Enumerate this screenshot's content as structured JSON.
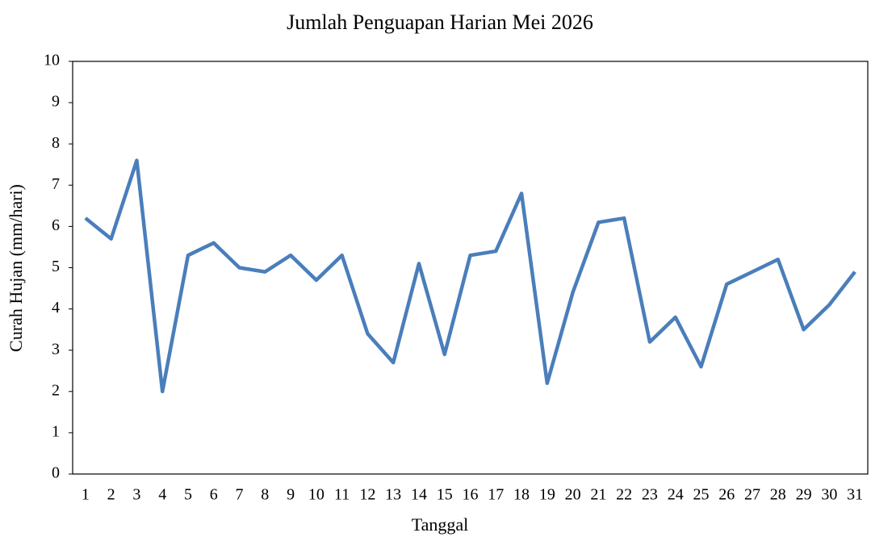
{
  "chart_data": {
    "type": "line",
    "title": "Jumlah Penguapan Harian Mei 2026",
    "x_label": "Tanggal",
    "y_label": "Curah Hujan (mm/hari)",
    "categories": [
      "1",
      "2",
      "3",
      "4",
      "5",
      "6",
      "7",
      "8",
      "9",
      "10",
      "11",
      "12",
      "13",
      "14",
      "15",
      "16",
      "17",
      "18",
      "19",
      "20",
      "21",
      "22",
      "23",
      "24",
      "25",
      "26",
      "27",
      "28",
      "29",
      "30",
      "31"
    ],
    "series": [
      {
        "name": "Penguapan",
        "color": "#4a7ebb",
        "values": [
          6.2,
          5.7,
          7.6,
          2.0,
          5.3,
          5.6,
          5.0,
          4.9,
          5.3,
          4.7,
          5.3,
          3.4,
          2.7,
          5.1,
          2.9,
          5.3,
          5.4,
          6.8,
          2.2,
          4.4,
          6.1,
          6.2,
          3.2,
          3.8,
          2.6,
          4.6,
          4.9,
          5.2,
          3.5,
          4.1,
          4.9
        ]
      }
    ],
    "ylim": [
      0,
      10
    ],
    "yticks": [
      0,
      1,
      2,
      3,
      4,
      5,
      6,
      7,
      8,
      9,
      10
    ],
    "grid": false
  }
}
